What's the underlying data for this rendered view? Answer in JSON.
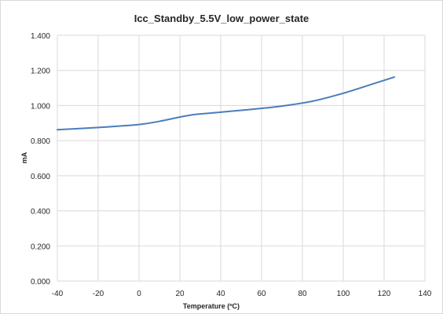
{
  "chart_data": {
    "type": "line",
    "title": "Icc_Standby_5.5V_low_power_state",
    "xlabel": "Temperature (ºC)",
    "ylabel": "mA",
    "xlim": [
      -40,
      140
    ],
    "ylim": [
      0,
      1.4
    ],
    "x_ticks": [
      "-40",
      "-20",
      "0",
      "20",
      "40",
      "60",
      "80",
      "100",
      "120",
      "140"
    ],
    "y_ticks": [
      "0.000",
      "0.200",
      "0.400",
      "0.600",
      "0.800",
      "1.000",
      "1.200",
      "1.400"
    ],
    "grid": true,
    "legend": "none",
    "series": [
      {
        "color": "#4a7ebb",
        "x": [
          -40,
          -20,
          0,
          10,
          25,
          40,
          55,
          70,
          85,
          100,
          115,
          125
        ],
        "y": [
          0.862,
          0.875,
          0.892,
          0.91,
          0.945,
          0.962,
          0.978,
          0.997,
          1.025,
          1.07,
          1.125,
          1.162
        ]
      }
    ]
  }
}
